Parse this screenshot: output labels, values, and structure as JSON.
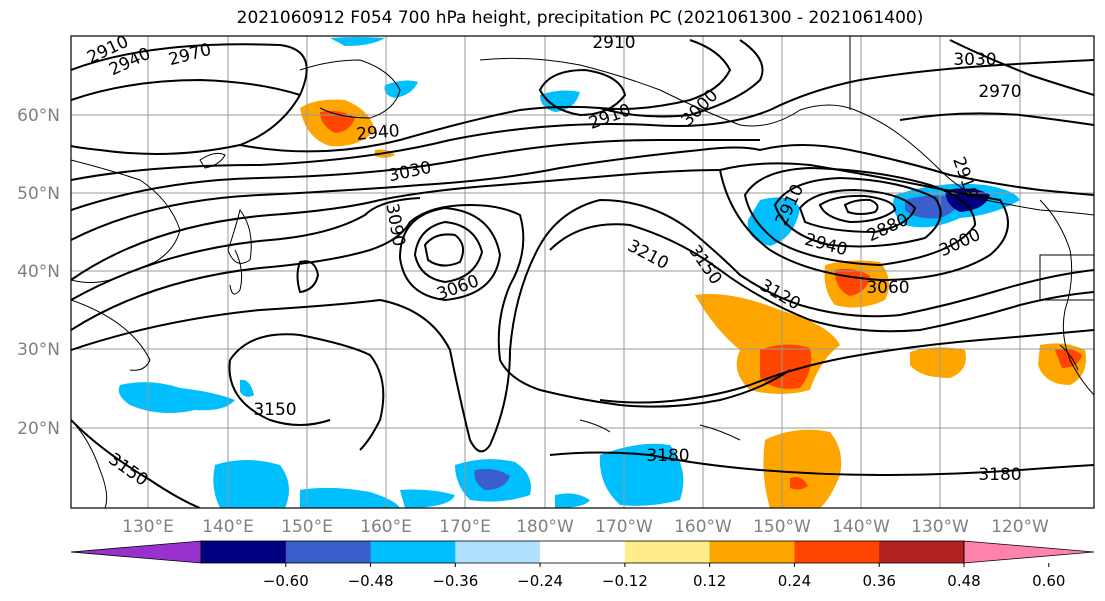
{
  "title": "2021060912 F054 700 hPa height, precipitation PC (2021061300 - 2021061400)",
  "lat_labels": [
    "60°N",
    "50°N",
    "40°N",
    "30°N",
    "20°N"
  ],
  "lon_labels": [
    "130°E",
    "140°E",
    "150°E",
    "160°E",
    "170°E",
    "180°W",
    "170°W",
    "160°W",
    "150°W",
    "140°W",
    "130°W",
    "120°W"
  ],
  "contour_labels": [
    "2910",
    "2940",
    "2970",
    "2910",
    "3030",
    "2970",
    "2910",
    "3000",
    "2940",
    "3030",
    "3090",
    "3060",
    "3210",
    "3150",
    "3120",
    "2910",
    "2940",
    "2880",
    "3000",
    "2910",
    "3060",
    "3150",
    "3180",
    "3180",
    "3150"
  ],
  "colorbar": {
    "tick_labels": [
      "−0.60",
      "−0.48",
      "−0.36",
      "−0.24",
      "−0.12",
      "0.12",
      "0.24",
      "0.36",
      "0.48",
      "0.60"
    ],
    "colors": [
      "#9932cc",
      "#000080",
      "#3a5fcd",
      "#00bfff",
      "#b0e2ff",
      "#ffffff",
      "#ffec8b",
      "#ffa500",
      "#ff4500",
      "#b22222",
      "#ff82ab"
    ]
  },
  "colors": {
    "contour": "#000000",
    "grid": "#999999",
    "lat_lon_text": "#808080"
  }
}
